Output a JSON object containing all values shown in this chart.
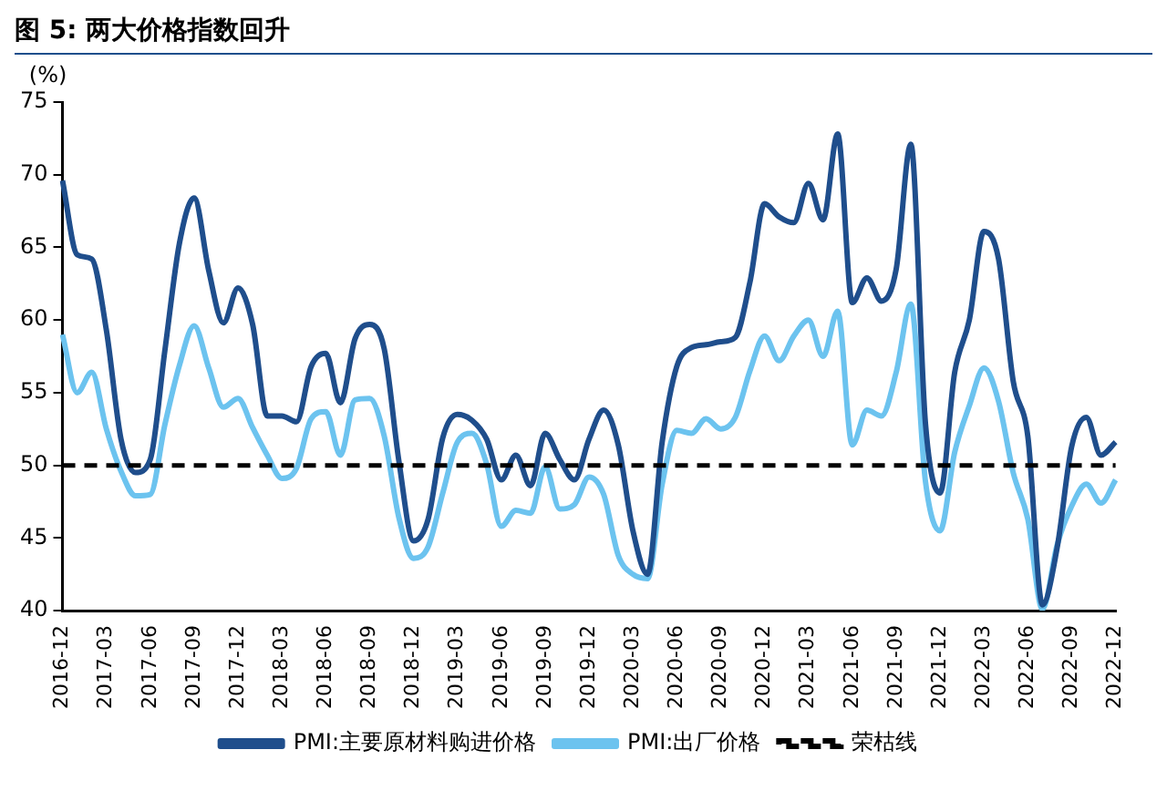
{
  "chart_data": {
    "type": "line",
    "title": "图 5: 两大价格指数回升",
    "ylabel": "(%)",
    "categories": [
      "2016-12",
      null,
      null,
      "2017-03",
      null,
      null,
      "2017-06",
      null,
      null,
      "2017-09",
      null,
      null,
      "2017-12",
      null,
      null,
      "2018-03",
      null,
      null,
      "2018-06",
      null,
      null,
      "2018-09",
      null,
      null,
      "2018-12",
      null,
      null,
      "2019-03",
      null,
      null,
      "2019-06",
      null,
      null,
      "2019-09",
      null,
      null,
      "2019-12",
      null,
      null,
      "2020-03",
      null,
      null,
      "2020-06",
      null,
      null,
      "2020-09",
      null,
      null,
      "2020-12",
      null,
      null,
      "2021-03",
      null,
      null,
      "2021-06",
      null,
      null,
      "2021-09",
      null,
      null,
      "2021-12",
      null,
      null,
      "2022-03",
      null,
      null,
      "2022-06",
      null,
      null,
      "2022-09",
      null,
      null,
      "2022-12"
    ],
    "series": [
      {
        "name": "PMI:主要原材料购进价格",
        "color": "#1f4e8c",
        "values": [
          69.6,
          64.5,
          64.2,
          59.3,
          51.8,
          49.5,
          50.4,
          57.9,
          65.3,
          68.4,
          63.4,
          59.8,
          62.2,
          59.7,
          53.4,
          53.4,
          53.0,
          56.8,
          57.7,
          54.3,
          58.7,
          59.7,
          58.0,
          50.3,
          44.8,
          46.3,
          51.9,
          53.5,
          53.1,
          51.8,
          49.0,
          50.7,
          48.6,
          52.2,
          50.4,
          49.0,
          51.8,
          53.8,
          51.4,
          45.5,
          42.5,
          51.6,
          56.8,
          58.1,
          58.3,
          58.5,
          58.8,
          62.6,
          68.0,
          67.1,
          66.7,
          69.4,
          66.9,
          72.8,
          61.2,
          62.9,
          61.3,
          63.5,
          72.1,
          52.9,
          48.1,
          56.4,
          60.0,
          66.1,
          64.2,
          55.8,
          52.0,
          40.4,
          44.3,
          51.3,
          53.3,
          50.7,
          51.6
        ]
      },
      {
        "name": "PMI:出厂价格",
        "color": "#6cc3ef",
        "values": [
          59.0,
          55.0,
          56.4,
          52.5,
          49.6,
          47.9,
          48.0,
          52.8,
          56.9,
          59.6,
          56.7,
          54.0,
          54.6,
          52.6,
          50.7,
          49.1,
          49.8,
          53.2,
          53.7,
          50.7,
          54.5,
          54.6,
          52.0,
          46.4,
          43.6,
          44.4,
          48.1,
          51.6,
          52.2,
          50.1,
          45.8,
          46.9,
          46.7,
          49.9,
          47.0,
          47.3,
          49.2,
          48.0,
          43.8,
          42.5,
          42.2,
          48.7,
          52.4,
          52.2,
          53.2,
          52.5,
          53.3,
          56.5,
          58.9,
          57.2,
          58.9,
          60.0,
          57.5,
          60.6,
          51.4,
          53.8,
          53.4,
          56.4,
          61.1,
          48.9,
          45.5,
          50.9,
          54.1,
          56.7,
          54.4,
          49.5,
          46.3,
          40.1,
          44.5,
          47.2,
          48.7,
          47.4,
          49.0
        ]
      }
    ],
    "ref_lines": [
      {
        "axis": "y",
        "value": 50,
        "label": "荣枯线",
        "color": "#000000",
        "line_style": "dashed"
      }
    ],
    "ylim": [
      40,
      75
    ],
    "yticks": [
      40,
      45,
      50,
      55,
      60,
      65,
      70,
      75
    ],
    "grid": false,
    "legend": "bottom",
    "marker": "none",
    "line_style": "solid"
  }
}
